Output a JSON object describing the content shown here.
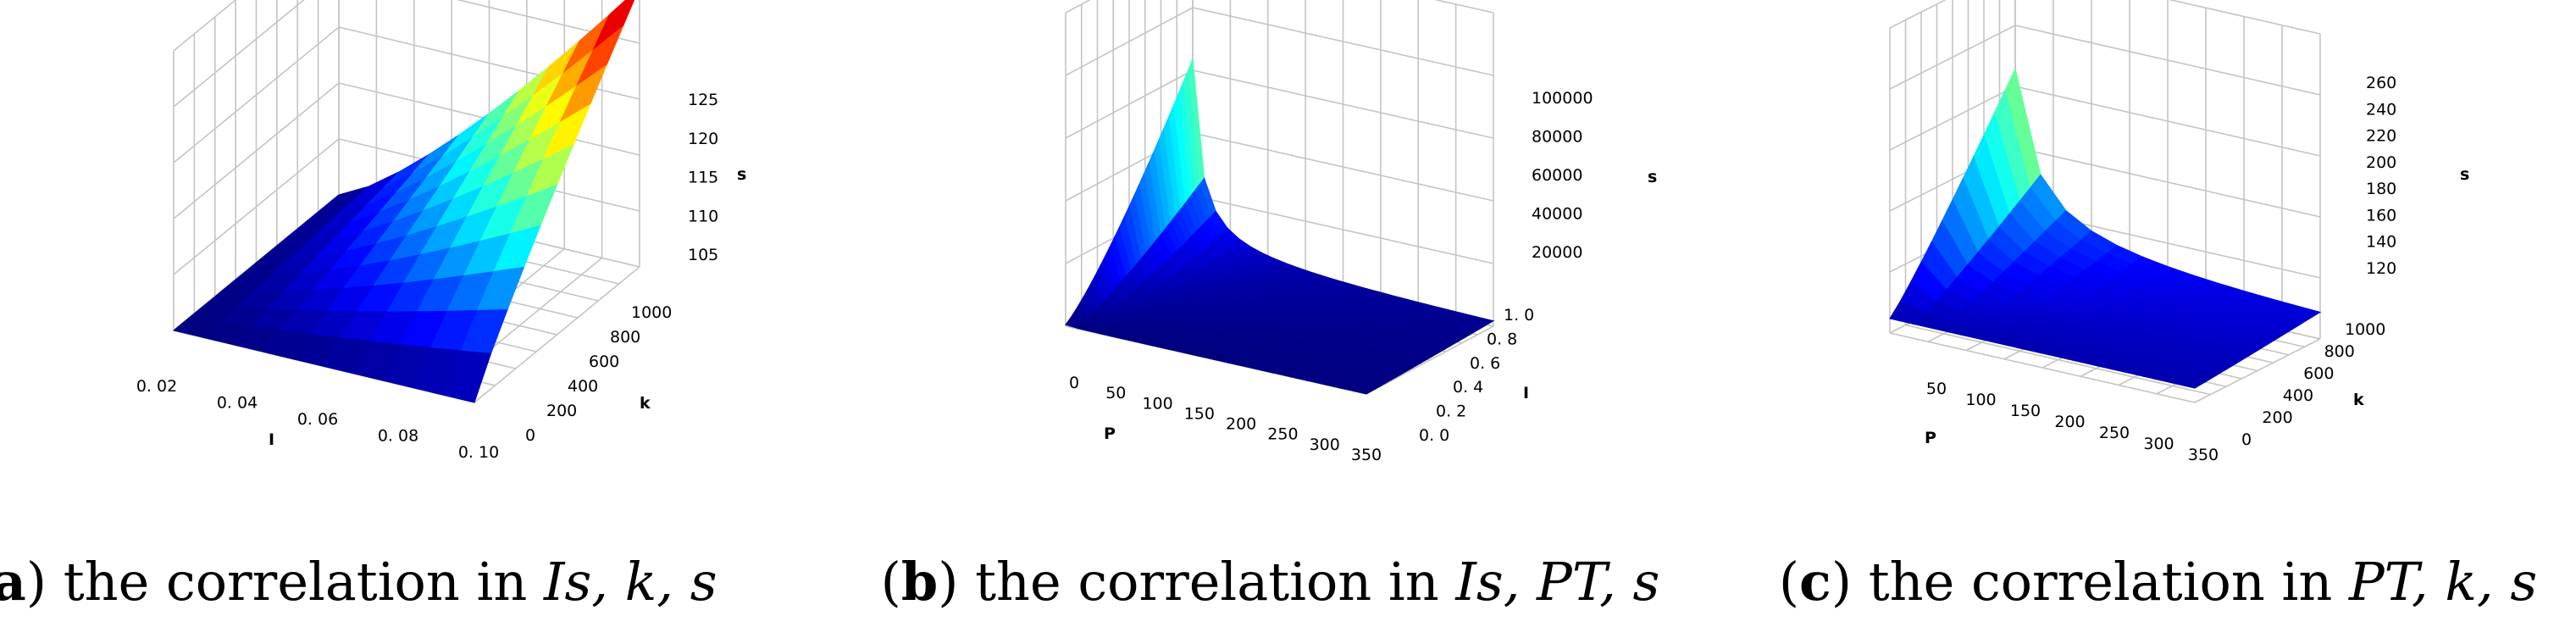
{
  "chart_data": [
    {
      "type": "surface",
      "panel": "a",
      "caption": {
        "letter": "a",
        "text": "the correlation in",
        "vars": "Is, k, s"
      },
      "xlabel": "I",
      "ylabel": "k",
      "zlabel": "s",
      "x_ticks": [
        "0. 02",
        "0. 04",
        "0. 06",
        "0. 08",
        "0. 10"
      ],
      "y_ticks": [
        "0",
        "200",
        "400",
        "600",
        "800",
        "1000"
      ],
      "z_ticks": [
        "105",
        "110",
        "115",
        "120",
        "125"
      ],
      "xlim": [
        0.01,
        0.1
      ],
      "ylim": [
        0,
        1000
      ],
      "zlim": [
        100,
        128
      ],
      "corner_values": {
        "x_min_y_min": 100,
        "x_max_y_min": 101,
        "x_min_y_max": 101,
        "x_max_y_max": 128
      }
    },
    {
      "type": "surface",
      "panel": "b",
      "caption": {
        "letter": "b",
        "text": "the correlation in",
        "vars": "Is, PT, s"
      },
      "xlabel": "P",
      "ylabel": "I",
      "zlabel": "s",
      "x_ticks": [
        "0",
        "50",
        "100",
        "150",
        "200",
        "250",
        "300",
        "350"
      ],
      "y_ticks": [
        "0. 0",
        "0. 2",
        "0. 4",
        "0. 6",
        "0. 8",
        "1. 0"
      ],
      "z_ticks": [
        "20000",
        "40000",
        "60000",
        "80000",
        "100000"
      ],
      "xlim": [
        0,
        370
      ],
      "ylim": [
        0,
        1.0
      ],
      "zlim": [
        0,
        110000
      ],
      "peak": {
        "x": 0,
        "y": 1.0,
        "z": 110000
      }
    },
    {
      "type": "surface",
      "panel": "c",
      "caption": {
        "letter": "c",
        "text": "the correlation in",
        "vars": "PT, k, s"
      },
      "xlabel": "P",
      "ylabel": "k",
      "zlabel": "s",
      "x_ticks": [
        "50",
        "100",
        "150",
        "200",
        "250",
        "300",
        "350"
      ],
      "y_ticks": [
        "0",
        "200",
        "400",
        "600",
        "800",
        "1000"
      ],
      "z_ticks": [
        "120",
        "140",
        "160",
        "180",
        "200",
        "220",
        "240",
        "260"
      ],
      "xlim": [
        20,
        370
      ],
      "ylim": [
        0,
        1000
      ],
      "zlim": [
        100,
        270
      ],
      "peak": {
        "x": 20,
        "y": 1000,
        "z": 270
      }
    }
  ]
}
